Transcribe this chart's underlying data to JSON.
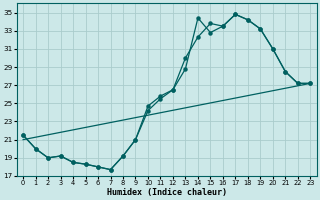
{
  "xlabel": "Humidex (Indice chaleur)",
  "bg_color": "#cce8e8",
  "grid_color": "#aacccc",
  "line_color": "#006060",
  "xlim": [
    -0.5,
    23.5
  ],
  "ylim": [
    17,
    36
  ],
  "yticks": [
    17,
    19,
    21,
    23,
    25,
    27,
    29,
    31,
    33,
    35
  ],
  "xticks": [
    0,
    1,
    2,
    3,
    4,
    5,
    6,
    7,
    8,
    9,
    10,
    11,
    12,
    13,
    14,
    15,
    16,
    17,
    18,
    19,
    20,
    21,
    22,
    23
  ],
  "line1_x": [
    0,
    1,
    2,
    3,
    4,
    5,
    6,
    7,
    8,
    9,
    10,
    11,
    12,
    13,
    14,
    15,
    16,
    17,
    18,
    19,
    20,
    21,
    22,
    23
  ],
  "line1_y": [
    21.5,
    20.0,
    19.0,
    19.2,
    18.5,
    18.3,
    18.0,
    17.7,
    19.2,
    21.0,
    24.7,
    25.8,
    26.5,
    28.8,
    34.4,
    32.8,
    33.5,
    34.8,
    34.2,
    33.2,
    31.0,
    28.5,
    27.2,
    27.2
  ],
  "line2_x": [
    0,
    1,
    2,
    3,
    4,
    5,
    6,
    7,
    8,
    9,
    10,
    11,
    12,
    13,
    14,
    15,
    16,
    17,
    18,
    19,
    20,
    21,
    22,
    23
  ],
  "line2_y": [
    21.5,
    20.0,
    19.0,
    19.2,
    18.5,
    18.3,
    18.0,
    17.7,
    19.2,
    21.0,
    24.2,
    25.5,
    26.5,
    30.0,
    32.3,
    33.8,
    33.5,
    34.8,
    34.2,
    33.2,
    31.0,
    28.5,
    27.2,
    27.2
  ],
  "line3_x": [
    0,
    23
  ],
  "line3_y": [
    21.0,
    27.2
  ]
}
